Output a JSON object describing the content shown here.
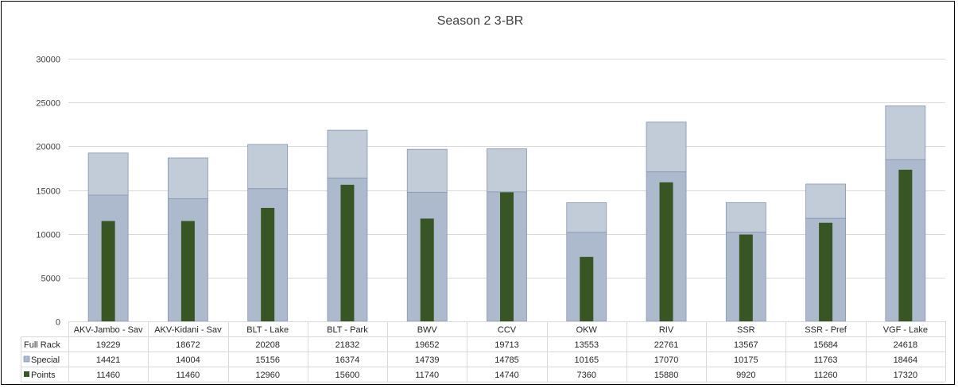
{
  "chart_data": {
    "type": "bar",
    "title": "Season 2 3-BR",
    "categories": [
      "AKV-Jambo - Sav",
      "AKV-Kidani - Sav",
      "BLT - Lake",
      "BLT - Park",
      "BWV",
      "CCV",
      "OKW",
      "RIV",
      "SSR",
      "SSR - Pref",
      "VGF - Lake"
    ],
    "series": [
      {
        "name": "Full Rack",
        "color": "#c2cbd8",
        "values": [
          19229,
          18672,
          20208,
          21832,
          19652,
          19713,
          13553,
          22761,
          13567,
          15684,
          24618
        ]
      },
      {
        "name": "Special",
        "color": "#adb9cd",
        "values": [
          14421,
          14004,
          15156,
          16374,
          14739,
          14785,
          10165,
          17070,
          10175,
          11763,
          18464
        ]
      },
      {
        "name": "Points",
        "color": "#375623",
        "values": [
          11460,
          11460,
          12960,
          15600,
          11740,
          14740,
          7360,
          15880,
          9920,
          11260,
          17320
        ]
      }
    ],
    "ylim": [
      0,
      30000
    ],
    "yticks": [
      0,
      5000,
      10000,
      15000,
      20000,
      25000,
      30000
    ],
    "grid": true,
    "data_table": true,
    "legend_placement": "data-table-row-headers"
  }
}
